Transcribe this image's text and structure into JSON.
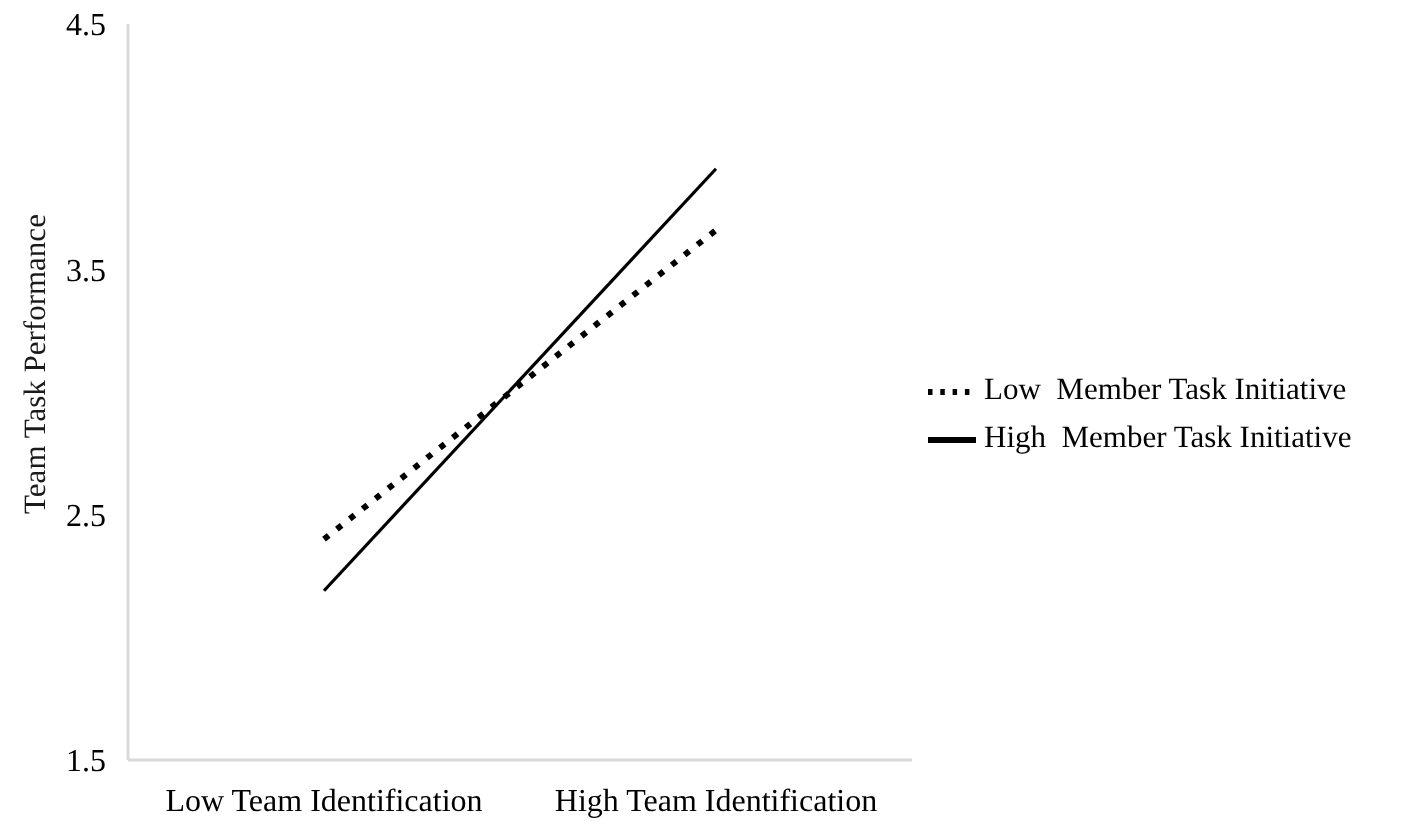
{
  "chart_data": {
    "type": "line",
    "ylabel": "Team Task Performance",
    "categories": [
      "Low Team Identification",
      "High Team Identification"
    ],
    "series": [
      {
        "name": "Low  Member Task Initiative",
        "color": "#000000",
        "values": [
          2.4,
          3.66
        ],
        "line_style": "dotted"
      },
      {
        "name": "High  Member Task Initiative",
        "color": "#000000",
        "values": [
          2.19,
          3.91
        ],
        "line_style": "solid"
      }
    ],
    "ylim": [
      1.5,
      4.5
    ],
    "yticks": [
      1.5,
      2.5,
      3.5,
      4.5
    ],
    "legend": "right",
    "marker": "none"
  }
}
